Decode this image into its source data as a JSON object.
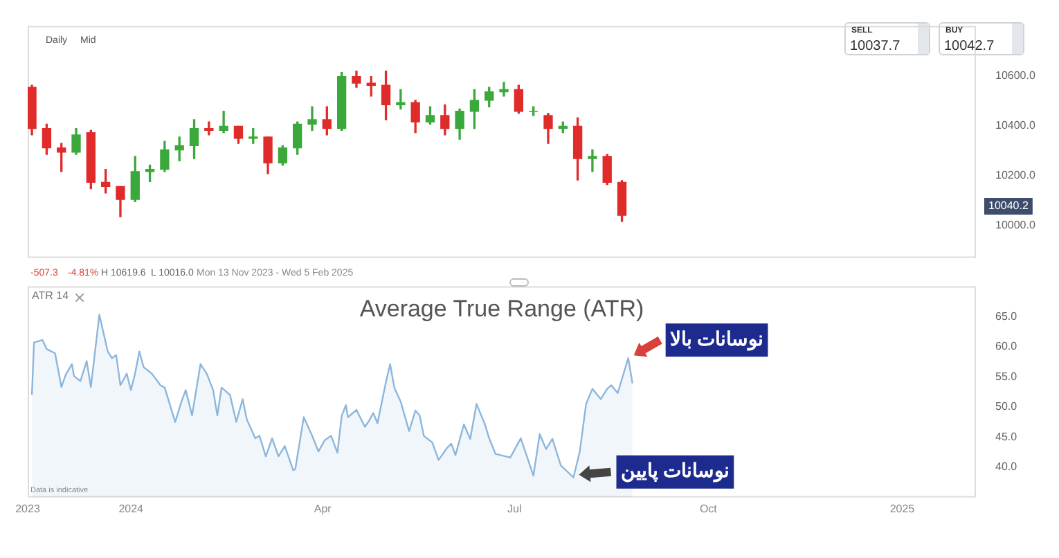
{
  "chart_data": [
    {
      "type": "candlestick",
      "x": [
        "2023-11-15",
        "2023-11-22",
        "2023-11-29",
        "2023-12-06",
        "2023-12-13",
        "2023-12-20",
        "2023-12-27",
        "2024-01-03",
        "2024-01-10",
        "2024-01-17",
        "2024-01-24",
        "2024-01-31",
        "2024-02-07",
        "2024-02-14",
        "2024-02-21",
        "2024-02-28",
        "2024-03-06",
        "2024-03-13",
        "2024-03-20",
        "2024-03-27",
        "2024-04-03",
        "2024-04-10",
        "2024-04-17",
        "2024-04-24",
        "2024-05-01",
        "2024-05-08",
        "2024-05-15",
        "2024-05-22",
        "2024-05-29",
        "2024-06-05",
        "2024-06-12",
        "2024-06-19",
        "2024-06-26",
        "2024-07-03",
        "2024-07-10",
        "2024-07-17",
        "2024-07-24",
        "2024-07-31",
        "2024-08-07",
        "2024-08-14",
        "2024-08-21"
      ],
      "ohlc": [
        [
          10554,
          10562,
          10363,
          10389
        ],
        [
          10389,
          10406,
          10285,
          10311
        ],
        [
          10311,
          10329,
          10216,
          10294
        ],
        [
          10294,
          10389,
          10285,
          10363
        ],
        [
          10372,
          10381,
          10147,
          10173
        ],
        [
          10173,
          10225,
          10130,
          10156
        ],
        [
          10156,
          10156,
          10035,
          10104
        ],
        [
          10104,
          10277,
          10095,
          10216
        ],
        [
          10216,
          10242,
          10176,
          10225
        ],
        [
          10225,
          10337,
          10216,
          10303
        ],
        [
          10303,
          10355,
          10259,
          10320
        ],
        [
          10320,
          10424,
          10268,
          10389
        ],
        [
          10389,
          10415,
          10363,
          10381
        ],
        [
          10381,
          10458,
          10372,
          10398
        ],
        [
          10398,
          10398,
          10329,
          10349
        ],
        [
          10349,
          10389,
          10329,
          10355
        ],
        [
          10355,
          10355,
          10208,
          10251
        ],
        [
          10251,
          10320,
          10242,
          10311
        ],
        [
          10311,
          10415,
          10285,
          10406
        ],
        [
          10406,
          10476,
          10381,
          10424
        ],
        [
          10424,
          10476,
          10363,
          10389
        ],
        [
          10389,
          10614,
          10381,
          10597
        ],
        [
          10597,
          10619.6,
          10554,
          10571
        ],
        [
          10571,
          10597,
          10519,
          10562
        ],
        [
          10562,
          10619,
          10424,
          10484
        ],
        [
          10484,
          10545,
          10467,
          10493
        ],
        [
          10493,
          10502,
          10372,
          10415
        ],
        [
          10415,
          10476,
          10406,
          10441
        ],
        [
          10441,
          10484,
          10363,
          10389
        ],
        [
          10389,
          10467,
          10346,
          10458
        ],
        [
          10458,
          10545,
          10389,
          10502
        ],
        [
          10502,
          10554,
          10476,
          10536
        ],
        [
          10536,
          10574,
          10519,
          10545
        ],
        [
          10545,
          10562,
          10450,
          10458
        ],
        [
          10458,
          10476,
          10441,
          10458
        ],
        [
          10441,
          10450,
          10329,
          10389
        ],
        [
          10389,
          10415,
          10372,
          10398
        ],
        [
          10398,
          10432,
          10182,
          10268
        ],
        [
          10268,
          10303,
          10216,
          10277
        ],
        [
          10277,
          10285,
          10164,
          10173
        ],
        [
          10173,
          10180,
          10016,
          10040.2
        ]
      ],
      "xlim": [
        "2023-11-13",
        "2025-02-05"
      ],
      "ylim": [
        9870,
        10800
      ],
      "yticks": [
        {
          "value": 10000,
          "label": "10000.0"
        },
        {
          "value": 10200,
          "label": "10200.0"
        },
        {
          "value": 10400,
          "label": "10400.0"
        },
        {
          "value": 10600,
          "label": "10600.0"
        }
      ],
      "tick_labels": "y",
      "annotations": [
        "Daily",
        "Mid",
        "SELL",
        "10037.7",
        "BUY",
        "10042.7",
        "10040.2",
        "-507.3",
        "-4.81%",
        "H 10619.6",
        "L 10016.0",
        "Mon 13 Nov 2023 - Wed 5 Feb 2025"
      ]
    },
    {
      "type": "area",
      "title": "Average True Range (ATR)",
      "x": [
        "2023-11-15",
        "2023-11-16",
        "2023-11-20",
        "2023-11-22",
        "2023-11-26",
        "2023-11-29",
        "2023-12-01",
        "2023-12-04",
        "2023-12-05",
        "2023-12-08",
        "2023-12-11",
        "2023-12-13",
        "2023-12-17",
        "2023-12-21",
        "2023-12-23",
        "2023-12-25",
        "2023-12-27",
        "2023-12-30",
        "2024-01-01",
        "2024-01-03",
        "2024-01-05",
        "2024-01-07",
        "2024-01-11",
        "2024-01-15",
        "2024-01-17",
        "2024-01-22",
        "2024-01-25",
        "2024-01-27",
        "2024-01-30",
        "2024-02-03",
        "2024-02-06",
        "2024-02-09",
        "2024-02-11",
        "2024-02-13",
        "2024-02-17",
        "2024-02-20",
        "2024-02-23",
        "2024-02-25",
        "2024-02-29",
        "2024-03-02",
        "2024-03-05",
        "2024-03-08",
        "2024-03-11",
        "2024-03-14",
        "2024-03-18",
        "2024-03-19",
        "2024-03-23",
        "2024-03-27",
        "2024-03-30",
        "2024-04-02",
        "2024-04-05",
        "2024-04-08",
        "2024-04-10",
        "2024-04-12",
        "2024-04-13",
        "2024-04-17",
        "2024-04-21",
        "2024-04-23",
        "2024-04-25",
        "2024-04-27",
        "2024-05-01",
        "2024-05-03",
        "2024-05-05",
        "2024-05-08",
        "2024-05-12",
        "2024-05-15",
        "2024-05-17",
        "2024-05-19",
        "2024-05-23",
        "2024-05-26",
        "2024-05-30",
        "2024-06-01",
        "2024-06-03",
        "2024-06-07",
        "2024-06-10",
        "2024-06-13",
        "2024-06-17",
        "2024-06-19",
        "2024-06-22",
        "2024-06-29",
        "2024-07-04",
        "2024-07-10",
        "2024-07-13",
        "2024-07-16",
        "2024-07-19",
        "2024-07-23",
        "2024-07-29",
        "2024-08-01",
        "2024-08-04",
        "2024-08-07",
        "2024-08-11",
        "2024-08-14",
        "2024-08-16",
        "2024-08-19",
        "2024-08-24",
        "2024-08-26"
      ],
      "series": [
        {
          "color": "#8db6dc",
          "values": [
            52.0,
            60.7,
            61.1,
            59.6,
            58.9,
            53.3,
            55.3,
            57.1,
            55.1,
            54.3,
            57.6,
            53.3,
            65.3,
            59.2,
            58.1,
            58.6,
            53.6,
            55.5,
            52.8,
            55.6,
            59.2,
            56.6,
            55.5,
            53.6,
            53.2,
            47.5,
            50.9,
            52.8,
            48.6,
            57.1,
            55.5,
            52.8,
            48.6,
            53.2,
            52.0,
            47.5,
            51.3,
            47.9,
            44.8,
            45.2,
            41.8,
            44.8,
            41.8,
            43.5,
            39.5,
            39.7,
            48.3,
            45.2,
            42.6,
            44.5,
            45.2,
            42.4,
            48.5,
            50.3,
            48.3,
            49.5,
            46.7,
            47.7,
            49.0,
            47.3,
            54.1,
            57.1,
            53.2,
            50.9,
            46.0,
            49.4,
            48.6,
            45.2,
            44.1,
            41.2,
            43.2,
            43.9,
            42.0,
            47.1,
            44.7,
            50.5,
            47.1,
            44.8,
            42.2,
            41.6,
            44.8,
            38.6,
            45.5,
            43.0,
            44.7,
            40.3,
            38.3,
            42.6,
            50.5,
            53.0,
            51.3,
            53.0,
            53.6,
            52.3,
            58.1,
            53.9
          ]
        }
      ],
      "xlim": [
        "2023-11-13",
        "2025-02-05"
      ],
      "xticks": [
        {
          "value": "2023-11-13",
          "label": "2023"
        },
        {
          "value": "2024-01-01",
          "label": "2024"
        },
        {
          "value": "2024-04-01",
          "label": "Apr"
        },
        {
          "value": "2024-07-01",
          "label": "Jul"
        },
        {
          "value": "2024-10-01",
          "label": "Oct"
        },
        {
          "value": "2025-01-01",
          "label": "2025"
        }
      ],
      "ylim": [
        35,
        70
      ],
      "yticks": [
        {
          "value": 40,
          "label": "40.0"
        },
        {
          "value": 45,
          "label": "45.0"
        },
        {
          "value": 50,
          "label": "50.0"
        },
        {
          "value": 55,
          "label": "55.0"
        },
        {
          "value": 60,
          "label": "60.0"
        },
        {
          "value": 65,
          "label": "65.0"
        }
      ],
      "annotations": [
        "ATR 14",
        "Data is indicative",
        {
          "text": "نوسانات بالا",
          "x": "2024-08-24",
          "y": 58.1
        },
        {
          "text": "نوسانات پایین",
          "x": "2024-07-29",
          "y": 38.3
        }
      ]
    }
  ]
}
